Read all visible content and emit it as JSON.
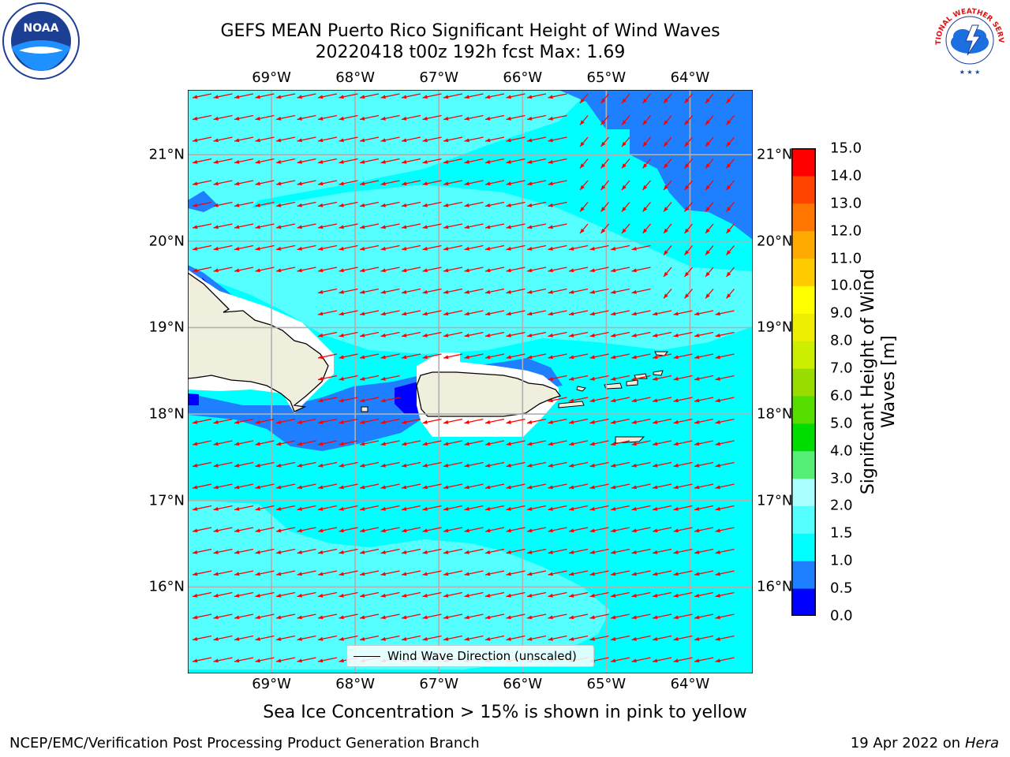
{
  "title": {
    "line1": "GEFS MEAN Puerto Rico Significant Height of Wind Waves",
    "line2": "20220418 t00z 192h fcst   Max: 1.69"
  },
  "map": {
    "lon_ticks": [
      "69°W",
      "68°W",
      "67°W",
      "66°W",
      "65°W",
      "64°W"
    ],
    "lat_ticks": [
      "21°N",
      "20°N",
      "19°N",
      "18°N",
      "17°N",
      "16°N"
    ],
    "lon_range": [
      -70.0,
      -63.25
    ],
    "lat_range": [
      15.0,
      21.75
    ],
    "ocean_color": "#00ffff",
    "land_color": "#f0eedc",
    "arrow_color": "#ff0000",
    "arrow_direction": "toward southwest (wind waves from northeast)"
  },
  "legend": {
    "label": "Wind Wave Direction (unscaled)"
  },
  "colorbar": {
    "title": "Significant Height of Wind Waves [m]",
    "levels": [
      "0.0",
      "0.5",
      "1.0",
      "1.5",
      "2.0",
      "3.0",
      "4.0",
      "5.0",
      "6.0",
      "7.0",
      "8.0",
      "9.0",
      "10.0",
      "11.0",
      "12.0",
      "13.0",
      "14.0",
      "15.0"
    ],
    "colors": [
      "#0000ff",
      "#1e7fff",
      "#00ffff",
      "#55ffff",
      "#aaffff",
      "#55ee77",
      "#00dd00",
      "#55dd00",
      "#99dd00",
      "#ccee00",
      "#eeee00",
      "#ffff00",
      "#ffcc00",
      "#ffaa00",
      "#ff7700",
      "#ff4400",
      "#ff0000"
    ]
  },
  "subtitle": "Sea Ice Concentration > 15% is shown in pink to yellow",
  "footer": {
    "left": "NCEP/EMC/Verification Post Processing Product Generation Branch",
    "right_date": "19 Apr 2022 on ",
    "right_host": "Hera"
  },
  "logos": {
    "left": "NOAA",
    "right": "NATIONAL WEATHER SERVICE"
  }
}
